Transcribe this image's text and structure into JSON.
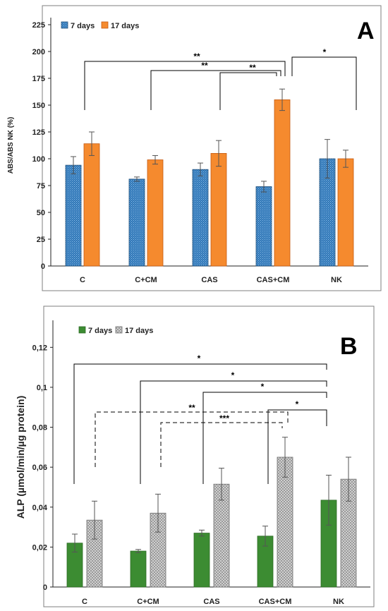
{
  "chart_data": [
    {
      "panel": "A",
      "type": "bar",
      "panel_label": "A",
      "categories": [
        "C",
        "C+CM",
        "CAS",
        "CAS+CM",
        "NK"
      ],
      "series": [
        {
          "name": "7 days",
          "values": [
            94,
            81,
            90,
            74,
            100
          ],
          "errors": [
            8,
            2,
            6,
            5,
            18
          ],
          "color": "#2e75b6",
          "pattern": "dots"
        },
        {
          "name": "17 days",
          "values": [
            114,
            99,
            105,
            155,
            100
          ],
          "errors": [
            11,
            4,
            12,
            10,
            8
          ],
          "color": "#f58a2e",
          "pattern": "solid"
        }
      ],
      "ylabel": "ABS/ABS NK (%)",
      "xlabel": "",
      "ylim": [
        0,
        225
      ],
      "yticks": [
        0,
        25,
        50,
        75,
        100,
        125,
        150,
        175,
        200,
        225
      ],
      "legend_position": "top-left",
      "grid": false,
      "significance": [
        {
          "from": "C",
          "to": "CAS+CM",
          "label": "**",
          "style": "solid"
        },
        {
          "from": "C+CM",
          "to": "CAS+CM",
          "label": "**",
          "style": "solid"
        },
        {
          "from": "CAS",
          "to": "CAS+CM",
          "label": "**",
          "style": "solid"
        },
        {
          "from": "CAS+CM",
          "to": "NK",
          "label": "*",
          "style": "solid"
        }
      ]
    },
    {
      "panel": "B",
      "type": "bar",
      "panel_label": "B",
      "categories": [
        "C",
        "C+CM",
        "CAS",
        "CAS+CM",
        "NK"
      ],
      "series": [
        {
          "name": "7 days",
          "values": [
            0.022,
            0.018,
            0.027,
            0.0255,
            0.0435
          ],
          "errors": [
            0.0045,
            0.0008,
            0.0015,
            0.005,
            0.0125
          ],
          "color": "#3c8c32",
          "pattern": "solid"
        },
        {
          "name": "17 days",
          "values": [
            0.0335,
            0.037,
            0.0515,
            0.065,
            0.054
          ],
          "errors": [
            0.0095,
            0.0095,
            0.008,
            0.01,
            0.011
          ],
          "color": "#a8a8a8",
          "pattern": "checker"
        }
      ],
      "ylabel": "ALP (µmol/min/µg protein)",
      "xlabel": "",
      "ylim": [
        0,
        0.13
      ],
      "yticks": [
        "0",
        "0,02",
        "0,04",
        "0,06",
        "0,08",
        "0,1",
        "0,12"
      ],
      "legend_position": "top-left",
      "grid": false,
      "significance": [
        {
          "from": "C",
          "to": "NK",
          "label": "*",
          "style": "solid"
        },
        {
          "from": "C+CM",
          "to": "NK",
          "label": "*",
          "style": "solid"
        },
        {
          "from": "CAS",
          "to": "NK",
          "label": "*",
          "style": "solid"
        },
        {
          "from": "CAS+CM",
          "to": "NK",
          "label": "*",
          "style": "solid"
        },
        {
          "from": "C",
          "to": "CAS+CM",
          "label": "**",
          "style": "dashed"
        },
        {
          "from": "C+CM",
          "to": "CAS+CM",
          "label": "***",
          "style": "dashed"
        }
      ]
    }
  ]
}
